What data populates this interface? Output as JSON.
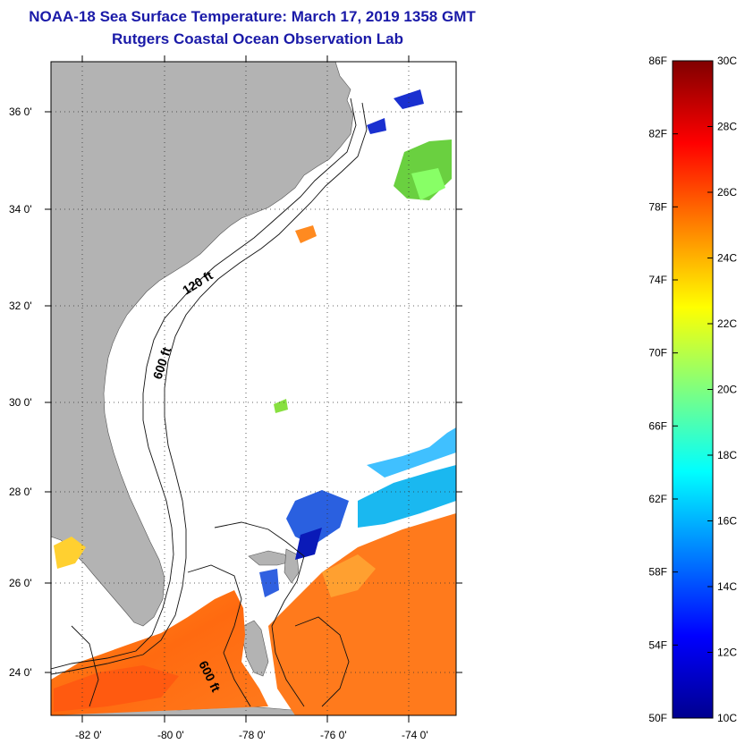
{
  "title": "NOAA-18 Sea Surface Temperature:  March 17, 2019 1358 GMT",
  "subtitle": "Rutgers Coastal Ocean Observation Lab",
  "map": {
    "lat_ticks": [
      "36 0'",
      "34 0'",
      "32 0'",
      "30 0'",
      "28 0'",
      "26 0'",
      "24 0'"
    ],
    "lon_ticks": [
      "-82 0'",
      "-80 0'",
      "-78 0'",
      "-76 0'",
      "-74 0'"
    ],
    "contour_labels": [
      "120 ft",
      "600 ft",
      "600 ft"
    ],
    "land_color": "#b3b3b3",
    "water_color": "#ffffff"
  },
  "colorbar": {
    "fahrenheit_labels": [
      "86F",
      "82F",
      "78F",
      "74F",
      "70F",
      "66F",
      "62F",
      "58F",
      "54F",
      "50F"
    ],
    "celsius_labels": [
      "30C",
      "28C",
      "26C",
      "24C",
      "22C",
      "20C",
      "18C",
      "16C",
      "14C",
      "12C",
      "10C"
    ],
    "min_f": 50,
    "max_f": 86,
    "min_c": 10,
    "max_c": 30
  }
}
